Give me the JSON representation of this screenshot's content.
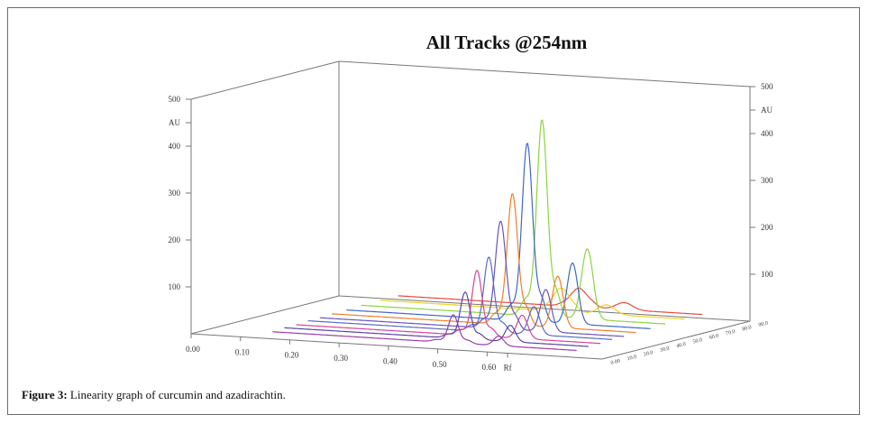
{
  "figure": {
    "caption_label": "Figure 3:",
    "caption_text": " Linearity graph of curcumin and azadirachtin."
  },
  "chart_data": {
    "type": "line",
    "title": "All Tracks @254nm",
    "xlabel": "Rf",
    "ylabel": "AU",
    "ylim": [
      0,
      500
    ],
    "x_ticks": [
      "0.00",
      "0.10",
      "0.20",
      "0.30",
      "0.40",
      "0.50",
      "0.60"
    ],
    "y_ticks": [
      "100",
      "200",
      "300",
      "400",
      "500"
    ],
    "y_unit_label": "AU",
    "z_ticks": [
      "0.00",
      "10.0",
      "20.0",
      "30.0",
      "40.0",
      "50.0",
      "60.0",
      "70.0",
      "80.0",
      "90.0"
    ],
    "grid": false,
    "legend": "none",
    "peak_x_positions": [
      0.62,
      0.73
    ],
    "series": [
      {
        "color": "#9b3fa6",
        "depth": 0.05,
        "baseline": 10,
        "peaks": [
          {
            "x": 0.62,
            "h": 60,
            "w": 0.012
          },
          {
            "x": 0.73,
            "h": 20,
            "w": 0.012
          }
        ]
      },
      {
        "color": "#5a45a8",
        "depth": 0.13,
        "baseline": 12,
        "peaks": [
          {
            "x": 0.62,
            "h": 100,
            "w": 0.012
          },
          {
            "x": 0.73,
            "h": 35,
            "w": 0.012
          }
        ]
      },
      {
        "color": "#d2459a",
        "depth": 0.21,
        "baseline": 12,
        "peaks": [
          {
            "x": 0.62,
            "h": 140,
            "w": 0.012
          },
          {
            "x": 0.73,
            "h": 50,
            "w": 0.013
          }
        ]
      },
      {
        "color": "#5b6dbf",
        "depth": 0.29,
        "baseline": 14,
        "peaks": [
          {
            "x": 0.62,
            "h": 160,
            "w": 0.012
          },
          {
            "x": 0.73,
            "h": 60,
            "w": 0.013
          }
        ]
      },
      {
        "color": "#6a55b8",
        "depth": 0.37,
        "baseline": 14,
        "peaks": [
          {
            "x": 0.62,
            "h": 230,
            "w": 0.013
          },
          {
            "x": 0.73,
            "h": 90,
            "w": 0.013
          }
        ]
      },
      {
        "color": "#f07f28",
        "depth": 0.45,
        "baseline": 16,
        "peaks": [
          {
            "x": 0.62,
            "h": 280,
            "w": 0.013
          },
          {
            "x": 0.73,
            "h": 110,
            "w": 0.013
          }
        ]
      },
      {
        "color": "#3d68c9",
        "depth": 0.55,
        "baseline": 16,
        "peaks": [
          {
            "x": 0.62,
            "h": 380,
            "w": 0.013
          },
          {
            "x": 0.73,
            "h": 130,
            "w": 0.013
          }
        ]
      },
      {
        "color": "#8cd43f",
        "depth": 0.65,
        "baseline": 18,
        "peaks": [
          {
            "x": 0.62,
            "h": 420,
            "w": 0.013
          },
          {
            "x": 0.73,
            "h": 150,
            "w": 0.014
          }
        ]
      },
      {
        "color": "#e9d52a",
        "depth": 0.78,
        "baseline": 18,
        "peaks": [
          {
            "x": 0.62,
            "h": 50,
            "w": 0.02
          },
          {
            "x": 0.73,
            "h": 20,
            "w": 0.02
          }
        ]
      },
      {
        "color": "#e94a3b",
        "depth": 0.9,
        "baseline": 18,
        "peaks": [
          {
            "x": 0.62,
            "h": 40,
            "w": 0.02
          },
          {
            "x": 0.73,
            "h": 15,
            "w": 0.02
          }
        ]
      }
    ]
  }
}
